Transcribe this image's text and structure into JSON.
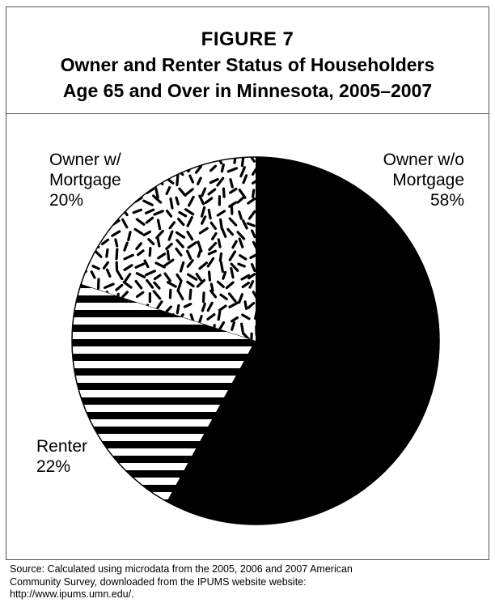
{
  "figure": {
    "label": "FIGURE 7",
    "title_line1": "Owner and Renter Status of Householders",
    "title_line2": "Age 65 and Over in Minnesota, 2005–2007"
  },
  "labels": {
    "owner_without": {
      "line1": "Owner w/o",
      "line2": "Mortgage",
      "pct": "58%"
    },
    "owner_with": {
      "line1": "Owner w/",
      "line2": "Mortgage",
      "pct": "20%"
    },
    "renter": {
      "line1": "Renter",
      "pct": "22%"
    }
  },
  "source": {
    "line1": "Source: Calculated using microdata from the 2005, 2006 and 2007 American",
    "line2": "Community Survey, downloaded from the IPUMS website website:",
    "line3": "http://www.ipums.umn.edu/."
  },
  "chart_data": {
    "type": "pie",
    "title": "Owner and Renter Status of Householders Age 65 and Over in Minnesota, 2005–2007",
    "slices": [
      {
        "name": "Owner w/o Mortgage",
        "value": 58,
        "fill": "solid-black"
      },
      {
        "name": "Renter",
        "value": 22,
        "fill": "horizontal-stripes"
      },
      {
        "name": "Owner w/ Mortgage",
        "value": 20,
        "fill": "random-dashes"
      }
    ],
    "start": "12 o'clock, clockwise",
    "colors": {
      "ink": "#000000",
      "background": "#ffffff"
    }
  }
}
